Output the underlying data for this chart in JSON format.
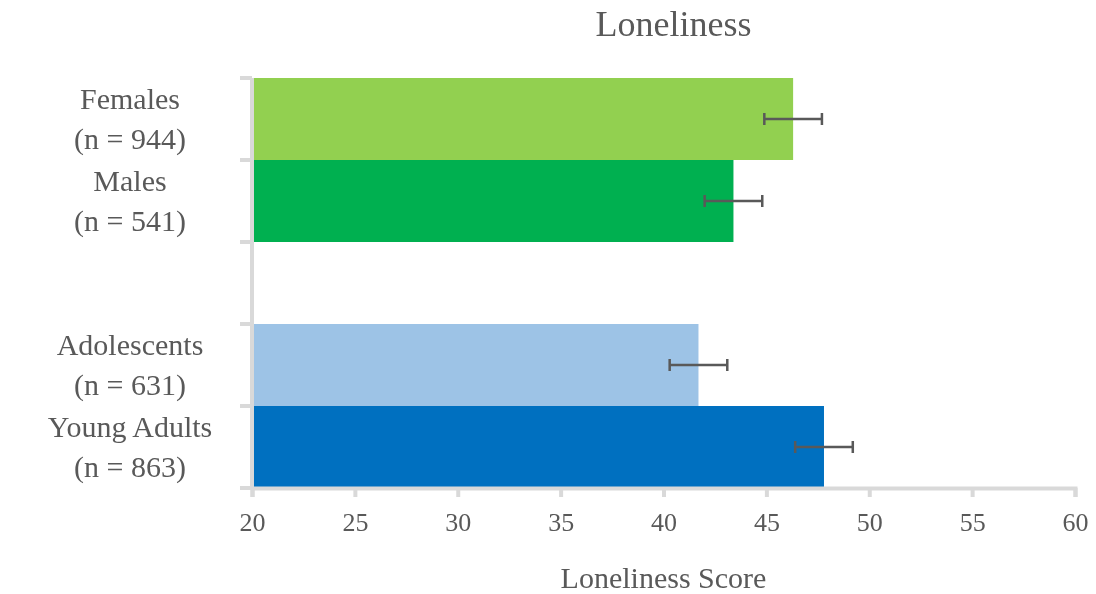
{
  "chart_data": {
    "type": "bar",
    "orientation": "horizontal",
    "title": "Loneliness",
    "xlabel": "Loneliness Score",
    "categories": [
      "Females\n(n = 944)",
      "Males\n(n = 541)",
      null,
      "Adolescents\n(n = 631)",
      "Young Adults\n(n = 863)"
    ],
    "values": [
      46.3,
      43.4,
      null,
      41.7,
      47.8
    ],
    "colors": [
      "#92d050",
      "#00b050",
      null,
      "#9dc3e6",
      "#0070c0"
    ],
    "errors": [
      1.4,
      1.4,
      null,
      1.4,
      1.4
    ],
    "xlim": [
      20,
      60
    ],
    "xticks": [
      20,
      25,
      30,
      35,
      40,
      45,
      50,
      55,
      60
    ],
    "grid": false
  }
}
